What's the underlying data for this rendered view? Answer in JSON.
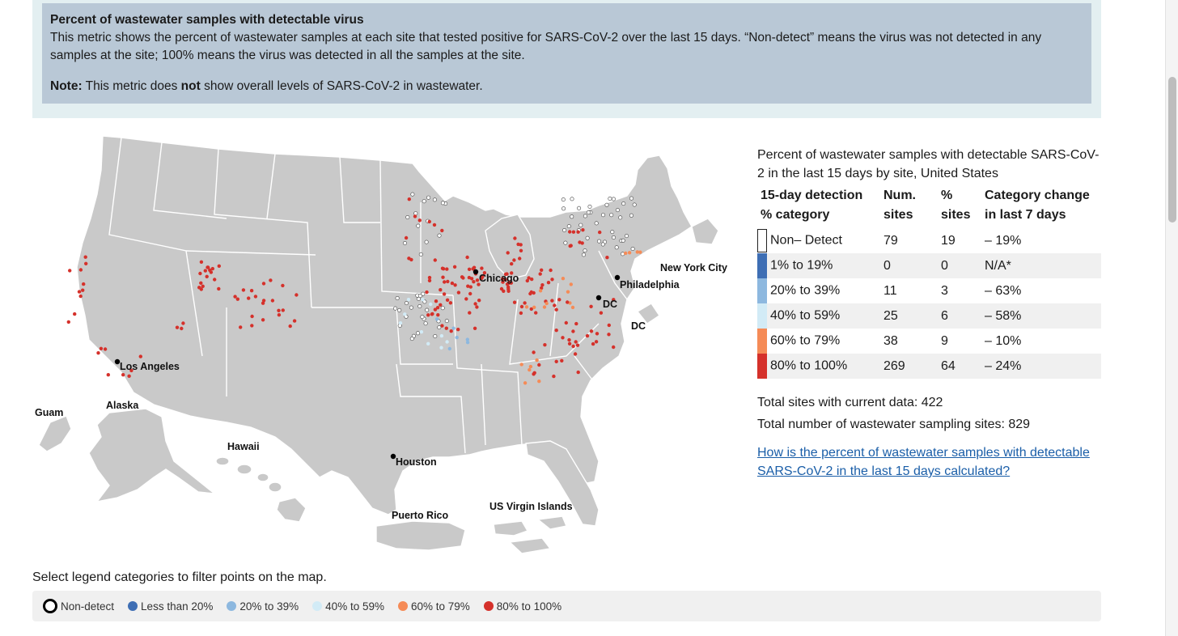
{
  "info": {
    "title": "Percent of wastewater samples with detectable virus",
    "body": "This metric shows the percent of wastewater samples at each site that tested positive for SARS-CoV-2 over the last 15 days. “Non-detect” means the virus was not detected in any samples at the site; 100% means the virus was detected in all the samples at the site.",
    "note_label": "Note:",
    "note_pre": " This metric does ",
    "note_emphasis": "not",
    "note_post": " show overall levels of SARS-CoV-2 in wastewater."
  },
  "map": {
    "labels": {
      "chicago": "Chicago",
      "new_york": "New York City",
      "philadelphia": "Philadelphia",
      "dc_city": "DC",
      "dc_inset": "DC",
      "los_angeles": "Los Angeles",
      "houston": "Houston",
      "guam": "Guam",
      "alaska": "Alaska",
      "hawaii": "Hawaii",
      "puerto_rico": "Puerto Rico",
      "usvi": "US Virgin Islands"
    },
    "land_color": "#c9c9c9",
    "point_colors": {
      "non_detect": "#ffffff",
      "pct_1_19": "#3e6eb4",
      "pct_20_39": "#8db8df",
      "pct_40_59": "#d2ebf6",
      "pct_60_79": "#f58b57",
      "pct_80_100": "#d5312b"
    }
  },
  "table": {
    "title": "Percent of wastewater samples with detectable SARS-CoV-2 in the last 15 days by site, United States",
    "headers": {
      "category_line1": "15-day detection",
      "category_line2": "% category",
      "num_line1": "Num.",
      "num_line2": "sites",
      "pct_line1": "%",
      "pct_line2": "sites",
      "change_line1": "Category change",
      "change_line2": "in last 7 days"
    },
    "rows": [
      {
        "category": "Non– Detect",
        "num": "79",
        "pct": "19",
        "change": "– 19%",
        "color": "#ffffff"
      },
      {
        "category": "1% to 19%",
        "num": "0",
        "pct": "0",
        "change": "N/A*",
        "color": "#3e6eb4"
      },
      {
        "category": "20% to 39%",
        "num": "11",
        "pct": "3",
        "change": "– 63%",
        "color": "#8db8df"
      },
      {
        "category": "40% to 59%",
        "num": "25",
        "pct": "6",
        "change": "– 58%",
        "color": "#d2ebf6"
      },
      {
        "category": "60% to 79%",
        "num": "38",
        "pct": "9",
        "change": "– 10%",
        "color": "#f58b57"
      },
      {
        "category": "80% to 100%",
        "num": "269",
        "pct": "64",
        "change": "– 24%",
        "color": "#d5312b"
      }
    ],
    "total_current": "Total sites with current data: 422",
    "total_sites": "Total number of wastewater sampling sites: 829",
    "link_text": "How is the percent of wastewater samples with detectable SARS-CoV-2 in the last 15 days calculated?"
  },
  "legend": {
    "hint": "Select legend categories to filter points on the map.",
    "items": [
      {
        "label": "Non-detect",
        "color": "#ffffff"
      },
      {
        "label": "Less than 20%",
        "color": "#3e6eb4"
      },
      {
        "label": "20% to 39%",
        "color": "#8db8df"
      },
      {
        "label": "40% to 59%",
        "color": "#d2ebf6"
      },
      {
        "label": "60% to 79%",
        "color": "#f58b57"
      },
      {
        "label": "80% to 100%",
        "color": "#d5312b"
      }
    ]
  }
}
